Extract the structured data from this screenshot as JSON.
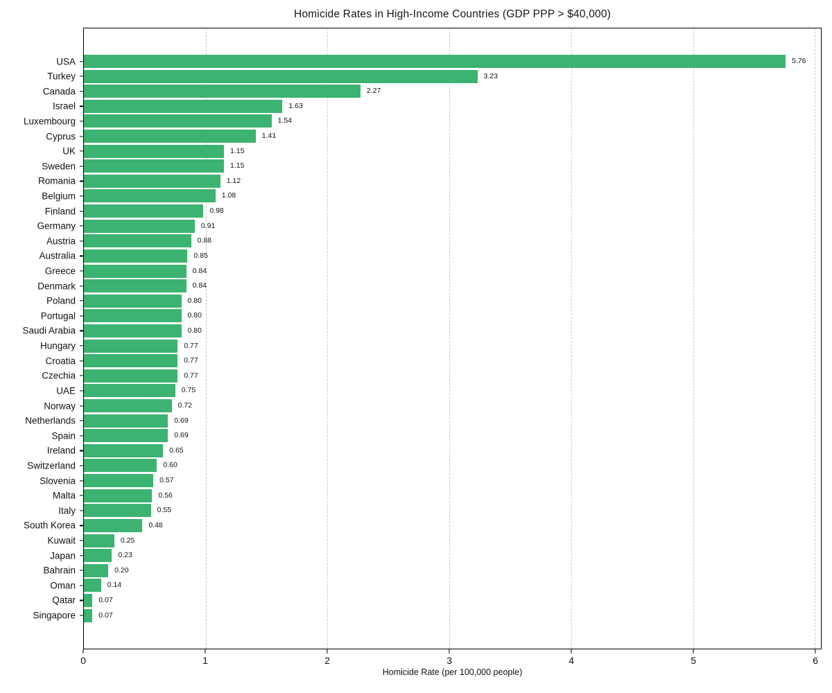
{
  "chart_data": {
    "type": "bar",
    "orientation": "horizontal",
    "title": "Homicide Rates in High-Income Countries (GDP PPP > $40,000)",
    "xlabel": "Homicide Rate (per 100,000 people)",
    "ylabel": "",
    "categories": [
      "USA",
      "Turkey",
      "Canada",
      "Israel",
      "Luxembourg",
      "Cyprus",
      "UK",
      "Sweden",
      "Romania",
      "Belgium",
      "Finland",
      "Germany",
      "Austria",
      "Australia",
      "Greece",
      "Denmark",
      "Poland",
      "Portugal",
      "Saudi Arabia",
      "Hungary",
      "Croatia",
      "Czechia",
      "UAE",
      "Norway",
      "Netherlands",
      "Spain",
      "Ireland",
      "Switzerland",
      "Slovenia",
      "Malta",
      "Italy",
      "South Korea",
      "Kuwait",
      "Japan",
      "Bahrain",
      "Oman",
      "Qatar",
      "Singapore"
    ],
    "values": [
      5.76,
      3.23,
      2.27,
      1.63,
      1.54,
      1.41,
      1.15,
      1.15,
      1.12,
      1.08,
      0.98,
      0.91,
      0.88,
      0.85,
      0.84,
      0.84,
      0.8,
      0.8,
      0.8,
      0.77,
      0.77,
      0.77,
      0.75,
      0.72,
      0.69,
      0.69,
      0.65,
      0.6,
      0.57,
      0.56,
      0.55,
      0.48,
      0.25,
      0.23,
      0.2,
      0.14,
      0.07,
      0.07
    ],
    "xticks": [
      0,
      1,
      2,
      3,
      4,
      5,
      6
    ],
    "xlim": [
      0,
      6.05
    ],
    "grid": "vertical-dashed",
    "legend": null,
    "bar_color": "#3cb371",
    "grid_color": "#c9c9c9",
    "spine_color": "#000000",
    "text_color": "#111111",
    "value_decimals": 2
  }
}
